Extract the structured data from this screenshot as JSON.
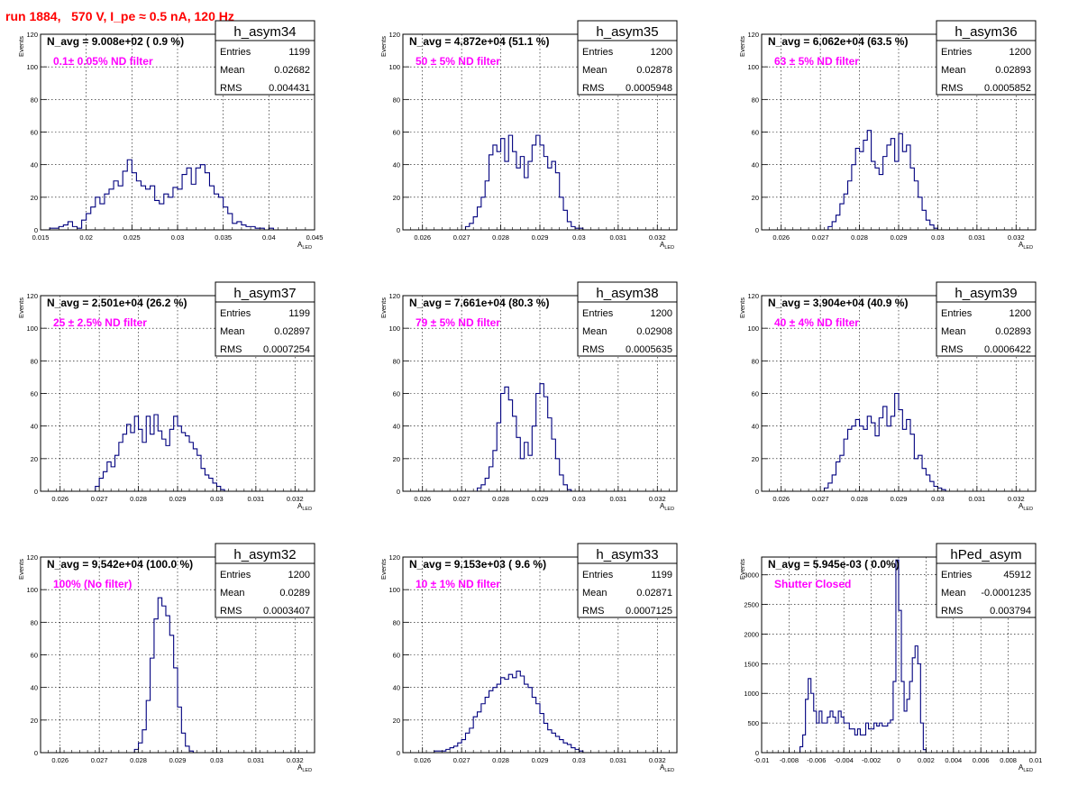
{
  "header": {
    "title": "run 1884,   570 V, I_pe ≈ 0.5 nA, 120 Hz"
  },
  "style": {
    "hist_color": "#00007f",
    "annotation_color": "#ff00ff",
    "title_color": "#ff0000"
  },
  "common": {
    "y_axis_label": "Events",
    "x_axis_label_main": "A",
    "x_axis_label_sub": "LED"
  },
  "chart_data": [
    {
      "type": "histogram",
      "name": "h_asym34",
      "stats": {
        "entries": "1199",
        "mean": "0.02682",
        "rms": "0.004431"
      },
      "navg": "N_avg = 9.008e+02 ( 0.9 %)",
      "filter": "0.1± 0.05% ND filter",
      "xlim": [
        0.015,
        0.045
      ],
      "ylim": [
        0,
        120
      ],
      "xticks": [
        0.015,
        0.02,
        0.025,
        0.03,
        0.035,
        0.04,
        0.045
      ],
      "xtick_labels": [
        "0.015",
        "0.02",
        "0.025",
        "0.03",
        "0.035",
        "0.04",
        "0.045"
      ],
      "yticks": [
        0,
        20,
        40,
        60,
        80,
        100,
        120
      ],
      "ytick_labels": [
        "0",
        "20",
        "40",
        "60",
        "80",
        "100",
        "120"
      ],
      "bins_x0": 0.0155,
      "bin_width": 0.0005,
      "counts": [
        0,
        1,
        1,
        2,
        3,
        5,
        2,
        1,
        6,
        10,
        14,
        20,
        16,
        22,
        25,
        30,
        27,
        36,
        43,
        35,
        30,
        27,
        25,
        27,
        18,
        16,
        22,
        20,
        26,
        25,
        34,
        38,
        28,
        38,
        40,
        35,
        27,
        22,
        20,
        14,
        10,
        4,
        5,
        3,
        2,
        2,
        1,
        1,
        0,
        1
      ]
    },
    {
      "type": "histogram",
      "name": "h_asym35",
      "stats": {
        "entries": "1200",
        "mean": "0.02878",
        "rms": "0.0005948"
      },
      "navg": "N_avg = 4.872e+04 (51.1 %)",
      "filter": "50 ± 5% ND filter",
      "xlim": [
        0.0255,
        0.0325
      ],
      "ylim": [
        0,
        120
      ],
      "xticks": [
        0.026,
        0.027,
        0.028,
        0.029,
        0.03,
        0.031,
        0.032
      ],
      "xtick_labels": [
        "0.026",
        "0.027",
        "0.028",
        "0.029",
        "0.03",
        "0.031",
        "0.032"
      ],
      "yticks": [
        0,
        20,
        40,
        60,
        80,
        100,
        120
      ],
      "ytick_labels": [
        "0",
        "20",
        "40",
        "60",
        "80",
        "100",
        "120"
      ],
      "bins_x0": 0.0271,
      "bin_width": 0.0001,
      "counts": [
        2,
        4,
        8,
        14,
        20,
        30,
        46,
        52,
        48,
        56,
        42,
        58,
        48,
        38,
        45,
        32,
        42,
        52,
        58,
        52,
        45,
        38,
        42,
        35,
        20,
        12,
        5,
        2,
        1,
        1
      ]
    },
    {
      "type": "histogram",
      "name": "h_asym36",
      "stats": {
        "entries": "1200",
        "mean": "0.02893",
        "rms": "0.0005852"
      },
      "navg": "N_avg = 6.062e+04 (63.5 %)",
      "filter": "63 ± 5% ND filter",
      "xlim": [
        0.0255,
        0.0325
      ],
      "ylim": [
        0,
        120
      ],
      "xticks": [
        0.026,
        0.027,
        0.028,
        0.029,
        0.03,
        0.031,
        0.032
      ],
      "xtick_labels": [
        "0.026",
        "0.027",
        "0.028",
        "0.029",
        "0.03",
        "0.031",
        "0.032"
      ],
      "yticks": [
        0,
        20,
        40,
        60,
        80,
        100,
        120
      ],
      "ytick_labels": [
        "0",
        "20",
        "40",
        "60",
        "80",
        "100",
        "120"
      ],
      "bins_x0": 0.0272,
      "bin_width": 0.0001,
      "counts": [
        2,
        5,
        9,
        16,
        22,
        30,
        40,
        50,
        48,
        55,
        61,
        42,
        38,
        34,
        45,
        52,
        56,
        42,
        59,
        48,
        52,
        38,
        30,
        20,
        12,
        6,
        3,
        1
      ]
    },
    {
      "type": "histogram",
      "name": "h_asym37",
      "stats": {
        "entries": "1199",
        "mean": "0.02897",
        "rms": "0.0007254"
      },
      "navg": "N_avg = 2.501e+04 (26.2 %)",
      "filter": "25 ± 2.5% ND filter",
      "xlim": [
        0.0255,
        0.0325
      ],
      "ylim": [
        0,
        120
      ],
      "xticks": [
        0.026,
        0.027,
        0.028,
        0.029,
        0.03,
        0.031,
        0.032
      ],
      "xtick_labels": [
        "0.026",
        "0.027",
        "0.028",
        "0.029",
        "0.03",
        "0.031",
        "0.032"
      ],
      "yticks": [
        0,
        20,
        40,
        60,
        80,
        100,
        120
      ],
      "ytick_labels": [
        "0",
        "20",
        "40",
        "60",
        "80",
        "100",
        "120"
      ],
      "bins_x0": 0.0269,
      "bin_width": 0.0001,
      "counts": [
        3,
        8,
        12,
        18,
        15,
        22,
        30,
        35,
        41,
        36,
        46,
        38,
        30,
        46,
        35,
        47,
        37,
        32,
        28,
        38,
        46,
        40,
        36,
        34,
        30,
        26,
        22,
        14,
        10,
        8,
        5,
        3,
        1
      ]
    },
    {
      "type": "histogram",
      "name": "h_asym38",
      "stats": {
        "entries": "1200",
        "mean": "0.02908",
        "rms": "0.0005635"
      },
      "navg": "N_avg = 7.661e+04 (80.3 %)",
      "filter": "79 ± 5% ND filter",
      "xlim": [
        0.0255,
        0.0325
      ],
      "ylim": [
        0,
        120
      ],
      "xticks": [
        0.026,
        0.027,
        0.028,
        0.029,
        0.03,
        0.031,
        0.032
      ],
      "xtick_labels": [
        "0.026",
        "0.027",
        "0.028",
        "0.029",
        "0.03",
        "0.031",
        "0.032"
      ],
      "yticks": [
        0,
        20,
        40,
        60,
        80,
        100,
        120
      ],
      "ytick_labels": [
        "0",
        "20",
        "40",
        "60",
        "80",
        "100",
        "120"
      ],
      "bins_x0": 0.0274,
      "bin_width": 0.0001,
      "counts": [
        2,
        4,
        8,
        15,
        25,
        42,
        60,
        64,
        56,
        46,
        33,
        20,
        30,
        22,
        40,
        60,
        66,
        58,
        45,
        32,
        20,
        10,
        4,
        1
      ]
    },
    {
      "type": "histogram",
      "name": "h_asym39",
      "stats": {
        "entries": "1200",
        "mean": "0.02893",
        "rms": "0.0006422"
      },
      "navg": "N_avg = 3.904e+04 (40.9 %)",
      "filter": "40 ± 4% ND filter",
      "xlim": [
        0.0255,
        0.0325
      ],
      "ylim": [
        0,
        120
      ],
      "xticks": [
        0.026,
        0.027,
        0.028,
        0.029,
        0.03,
        0.031,
        0.032
      ],
      "xtick_labels": [
        "0.026",
        "0.027",
        "0.028",
        "0.029",
        "0.03",
        "0.031",
        "0.032"
      ],
      "yticks": [
        0,
        20,
        40,
        60,
        80,
        100,
        120
      ],
      "ytick_labels": [
        "0",
        "20",
        "40",
        "60",
        "80",
        "100",
        "120"
      ],
      "bins_x0": 0.0271,
      "bin_width": 0.0001,
      "counts": [
        2,
        5,
        10,
        18,
        22,
        32,
        38,
        40,
        44,
        40,
        38,
        46,
        42,
        34,
        45,
        52,
        40,
        46,
        60,
        50,
        38,
        44,
        35,
        20,
        22,
        14,
        10,
        6,
        3,
        2,
        1
      ]
    },
    {
      "type": "histogram",
      "name": "h_asym32",
      "stats": {
        "entries": "1200",
        "mean": "0.0289",
        "rms": "0.0003407"
      },
      "navg": "N_avg = 9.542e+04 (100.0 %)",
      "filter": "100% (No filter)",
      "xlim": [
        0.0255,
        0.0325
      ],
      "ylim": [
        0,
        120
      ],
      "xticks": [
        0.026,
        0.027,
        0.028,
        0.029,
        0.03,
        0.031,
        0.032
      ],
      "xtick_labels": [
        "0.026",
        "0.027",
        "0.028",
        "0.029",
        "0.03",
        "0.031",
        "0.032"
      ],
      "yticks": [
        0,
        20,
        40,
        60,
        80,
        100,
        120
      ],
      "ytick_labels": [
        "0",
        "20",
        "40",
        "60",
        "80",
        "100",
        "120"
      ],
      "bins_x0": 0.0279,
      "bin_width": 0.0001,
      "counts": [
        2,
        6,
        14,
        32,
        58,
        82,
        95,
        90,
        84,
        72,
        52,
        28,
        12,
        4,
        1
      ]
    },
    {
      "type": "histogram",
      "name": "h_asym33",
      "stats": {
        "entries": "1199",
        "mean": "0.02871",
        "rms": "0.0007125"
      },
      "navg": "N_avg = 9.153e+03 ( 9.6 %)",
      "filter": "10 ± 1% ND filter",
      "xlim": [
        0.0255,
        0.0325
      ],
      "ylim": [
        0,
        120
      ],
      "xticks": [
        0.026,
        0.027,
        0.028,
        0.029,
        0.03,
        0.031,
        0.032
      ],
      "xtick_labels": [
        "0.026",
        "0.027",
        "0.028",
        "0.029",
        "0.03",
        "0.031",
        "0.032"
      ],
      "yticks": [
        0,
        20,
        40,
        60,
        80,
        100,
        120
      ],
      "ytick_labels": [
        "0",
        "20",
        "40",
        "60",
        "80",
        "100",
        "120"
      ],
      "bins_x0": 0.0263,
      "bin_width": 0.0001,
      "counts": [
        1,
        1,
        1,
        2,
        3,
        4,
        6,
        8,
        12,
        15,
        22,
        25,
        30,
        34,
        38,
        40,
        42,
        46,
        45,
        48,
        46,
        50,
        47,
        42,
        40,
        34,
        30,
        24,
        18,
        14,
        12,
        10,
        8,
        6,
        5,
        3,
        2,
        1
      ]
    },
    {
      "type": "histogram",
      "name": "hPed_asym",
      "stats": {
        "entries": "45912",
        "mean": "-0.0001235",
        "rms": "0.003794"
      },
      "navg": "N_avg = 5.945e-03 ( 0.0%)",
      "filter": "Shutter Closed",
      "xlim": [
        -0.01,
        0.01
      ],
      "ylim": [
        0,
        3300
      ],
      "xticks": [
        -0.01,
        -0.008,
        -0.006,
        -0.004,
        -0.002,
        0,
        0.002,
        0.004,
        0.006,
        0.008,
        0.01
      ],
      "xtick_labels": [
        "-0.01",
        "-0.008",
        "-0.006",
        "-0.004",
        "-0.002",
        "0",
        "0.002",
        "0.004",
        "0.006",
        "0.008",
        "0.01"
      ],
      "yticks": [
        0,
        500,
        1000,
        1500,
        2000,
        2500,
        3000
      ],
      "ytick_labels": [
        "0",
        "500",
        "1000",
        "1500",
        "2000",
        "2500",
        "3000"
      ],
      "bins_x0": -0.0072,
      "bin_width": 0.0002,
      "counts": [
        100,
        300,
        900,
        1250,
        1000,
        700,
        500,
        700,
        500,
        500,
        600,
        700,
        600,
        500,
        700,
        600,
        500,
        500,
        400,
        400,
        300,
        400,
        300,
        300,
        500,
        400,
        400,
        500,
        450,
        500,
        450,
        450,
        500,
        550,
        1200,
        3250,
        2400,
        1200,
        700,
        900,
        1200,
        1600,
        1800,
        1500,
        500,
        50
      ]
    }
  ]
}
